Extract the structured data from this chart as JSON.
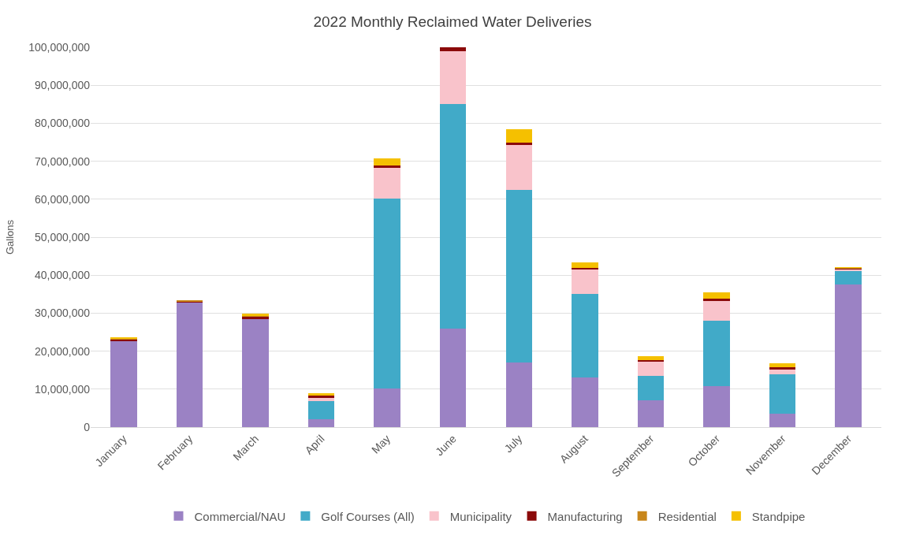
{
  "chart_data": {
    "type": "bar",
    "stacked": true,
    "title": "2022 Monthly Reclaimed Water Deliveries",
    "ylabel": "Gallons",
    "categories": [
      "January",
      "February",
      "March",
      "April",
      "May",
      "June",
      "July",
      "August",
      "September",
      "October",
      "November",
      "December"
    ],
    "series": [
      {
        "name": "Commercial/NAU",
        "color": "#9b82c4",
        "values": [
          22800000,
          32800000,
          28500000,
          2000000,
          10200000,
          26000000,
          17000000,
          13000000,
          7000000,
          10800000,
          3500000,
          37500000
        ]
      },
      {
        "name": "Golf Courses (All)",
        "color": "#41aac8",
        "values": [
          0,
          0,
          0,
          4800000,
          50000000,
          59000000,
          45500000,
          22000000,
          6500000,
          17200000,
          10500000,
          3700000
        ]
      },
      {
        "name": "Municipality",
        "color": "#f9c3cb",
        "values": [
          0,
          0,
          0,
          1000000,
          8000000,
          14000000,
          11700000,
          6500000,
          3800000,
          5200000,
          1200000,
          300000
        ]
      },
      {
        "name": "Manufacturing",
        "color": "#8b0a0a",
        "values": [
          400000,
          300000,
          600000,
          400000,
          700000,
          1000000,
          800000,
          500000,
          400000,
          600000,
          600000,
          300000
        ]
      },
      {
        "name": "Residential",
        "color": "#c8861a",
        "values": [
          200000,
          100000,
          200000,
          null,
          null,
          null,
          null,
          null,
          null,
          null,
          null,
          200000
        ]
      },
      {
        "name": "Standpipe",
        "color": "#f5c000",
        "values": [
          100000,
          0,
          500000,
          700000,
          1800000,
          0,
          3500000,
          1400000,
          1000000,
          1600000,
          1000000,
          100000
        ]
      }
    ],
    "ylim": [
      0,
      100000000
    ],
    "yticks": [
      {
        "value": 0,
        "label": "0"
      },
      {
        "value": 10000000,
        "label": "10,000,000"
      },
      {
        "value": 20000000,
        "label": "20,000,000"
      },
      {
        "value": 30000000,
        "label": "30,000,000"
      },
      {
        "value": 40000000,
        "label": "40,000,000"
      },
      {
        "value": 50000000,
        "label": "50,000,000"
      },
      {
        "value": 60000000,
        "label": "60,000,000"
      },
      {
        "value": 70000000,
        "label": "70,000,000"
      },
      {
        "value": 80000000,
        "label": "80,000,000"
      },
      {
        "value": 90000000,
        "label": "90,000,000"
      },
      {
        "value": 100000000,
        "label": "100,000,000"
      }
    ],
    "grid": "y",
    "legend": "bottom"
  }
}
